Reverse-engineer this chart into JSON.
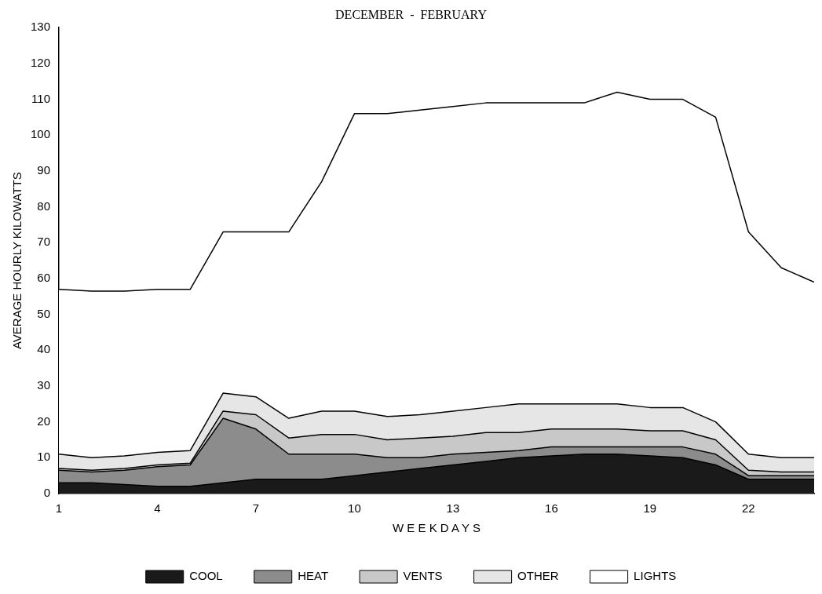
{
  "chart_data": {
    "type": "area",
    "stacked": true,
    "title": "DECEMBER  -  FEBRUARY",
    "xlabel": "W E E K D A Y S",
    "ylabel": "AVERAGE HOURLY KILOWATTS",
    "x": [
      1,
      2,
      3,
      4,
      5,
      6,
      7,
      8,
      9,
      10,
      11,
      12,
      13,
      14,
      15,
      16,
      17,
      18,
      19,
      20,
      21,
      22,
      23,
      24
    ],
    "xlim": [
      1,
      24
    ],
    "xticks": [
      1,
      4,
      7,
      10,
      13,
      16,
      19,
      22
    ],
    "ylim": [
      0,
      130
    ],
    "yticks": [
      0,
      10,
      20,
      30,
      40,
      50,
      60,
      70,
      80,
      90,
      100,
      110,
      120,
      130
    ],
    "grid": false,
    "legend": "bottom",
    "series": [
      {
        "name": "COOL",
        "color": "#1a1a1a",
        "values": [
          3,
          3,
          2.5,
          2,
          2,
          3,
          4,
          4,
          4,
          5,
          6,
          7,
          8,
          9,
          10,
          10.5,
          11,
          11,
          10.5,
          10,
          8,
          4,
          4,
          4
        ]
      },
      {
        "name": "HEAT",
        "color": "#8c8c8c",
        "values": [
          3.5,
          3,
          4,
          5.5,
          6,
          18,
          14,
          7,
          7,
          6,
          4,
          3,
          3,
          2.5,
          2,
          2.5,
          2,
          2,
          2.5,
          3,
          3,
          1,
          1,
          1
        ]
      },
      {
        "name": "VENTS",
        "color": "#c8c8c8",
        "values": [
          0.5,
          0.5,
          0.5,
          0.5,
          0.5,
          2,
          4,
          4.5,
          5.5,
          5.5,
          5,
          5.5,
          5,
          5.5,
          5,
          5,
          5,
          5,
          4.5,
          4.5,
          4,
          1.5,
          1,
          1
        ]
      },
      {
        "name": "OTHER",
        "color": "#e6e6e6",
        "values": [
          4,
          3.5,
          3.5,
          3.5,
          3.5,
          5,
          5,
          5.5,
          6.5,
          6.5,
          6.5,
          6.5,
          7,
          7,
          8,
          7,
          7,
          7,
          6.5,
          6.5,
          5,
          4.5,
          4,
          4
        ]
      },
      {
        "name": "LIGHTS",
        "color": "#ffffff",
        "values": [
          46,
          46.5,
          46,
          45.5,
          45,
          45,
          46,
          52,
          64,
          83,
          84.5,
          85,
          85,
          85,
          84,
          84,
          84,
          87,
          86,
          86,
          85,
          62,
          53,
          49
        ]
      }
    ]
  }
}
